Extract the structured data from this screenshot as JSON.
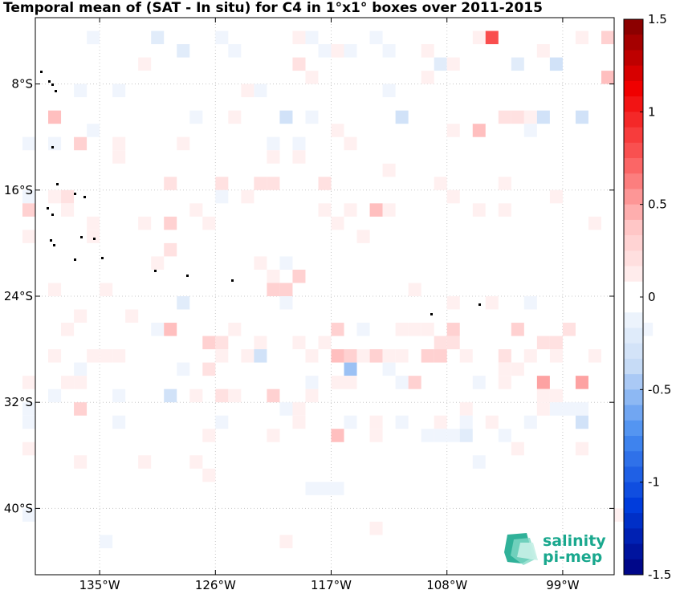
{
  "chart_data": {
    "type": "heatmap",
    "title": "Temporal mean of (SAT - In situ) for C4 in 1°x1° boxes over 2011-2015",
    "x_axis": {
      "unit": "degrees longitude",
      "range": [
        -140,
        -95
      ],
      "ticks": [
        -135,
        -126,
        -117,
        -108,
        -99
      ],
      "tick_labels": [
        "135°W",
        "126°W",
        "117°W",
        "108°W",
        "99°W"
      ]
    },
    "y_axis": {
      "unit": "degrees latitude",
      "range": [
        -45,
        -3
      ],
      "ticks": [
        -8,
        -16,
        -24,
        -32,
        -40
      ],
      "tick_labels": [
        "8°S",
        "16°S",
        "24°S",
        "32°S",
        "40°S"
      ]
    },
    "grid": true,
    "colorbar": {
      "range": [
        -1.5,
        1.5
      ],
      "ticks": [
        1.5,
        1,
        0.5,
        0,
        -0.5,
        -1,
        -1.5
      ],
      "tick_labels": [
        "1.5",
        "1",
        "0.5",
        "0",
        "-0.5",
        "-1",
        "-1.5"
      ],
      "low_color": "#00007f",
      "mid_color": "#ffffff",
      "high_color": "#7f0000"
    },
    "cells_note": "lon/lat of 1°x1° box west edge and north edge; value = mean difference",
    "cells": [
      [
        -136,
        -4,
        -0.1
      ],
      [
        -131,
        -4,
        -0.2
      ],
      [
        -126,
        -4,
        -0.1
      ],
      [
        -120,
        -4,
        0.1
      ],
      [
        -119,
        -4,
        -0.1
      ],
      [
        -114,
        -4,
        -0.1
      ],
      [
        -106,
        -4,
        0.1
      ],
      [
        -105,
        -4,
        0.8
      ],
      [
        -98,
        -4,
        0.1
      ],
      [
        -96,
        -4,
        0.3
      ],
      [
        -129,
        -5,
        -0.2
      ],
      [
        -117,
        -5,
        0.1
      ],
      [
        -116,
        -5,
        -0.1
      ],
      [
        -113,
        -5,
        -0.1
      ],
      [
        -110,
        -5,
        0.1
      ],
      [
        -101,
        -5,
        0.1
      ],
      [
        -118,
        -5,
        -0.1
      ],
      [
        -125,
        -5,
        -0.1
      ],
      [
        -132,
        -6,
        0.1
      ],
      [
        -120,
        -6,
        0.2
      ],
      [
        -109,
        -6,
        -0.2
      ],
      [
        -103,
        -6,
        -0.2
      ],
      [
        -100,
        -6,
        -0.3
      ],
      [
        -108,
        -6,
        0.1
      ],
      [
        -96,
        -7,
        0.4
      ],
      [
        -119,
        -7,
        0.1
      ],
      [
        -110,
        -7,
        0.1
      ],
      [
        -137,
        -8,
        -0.1
      ],
      [
        -134,
        -8,
        -0.1
      ],
      [
        -123,
        -8,
        -0.1
      ],
      [
        -124,
        -8,
        0.1
      ],
      [
        -113,
        -8,
        -0.1
      ],
      [
        -139,
        -10,
        0.4
      ],
      [
        -128,
        -10,
        -0.1
      ],
      [
        -125,
        -10,
        0.1
      ],
      [
        -121,
        -10,
        -0.3
      ],
      [
        -119,
        -10,
        -0.1
      ],
      [
        -112,
        -10,
        -0.3
      ],
      [
        -104,
        -10,
        0.2
      ],
      [
        -103,
        -10,
        0.2
      ],
      [
        -102,
        -10,
        0.1
      ],
      [
        -101,
        -10,
        -0.3
      ],
      [
        -98,
        -10,
        -0.3
      ],
      [
        -136,
        -11,
        -0.1
      ],
      [
        -117,
        -11,
        0.1
      ],
      [
        -108,
        -11,
        0.1
      ],
      [
        -106,
        -11,
        0.4
      ],
      [
        -102,
        -11,
        -0.1
      ],
      [
        -141,
        -12,
        -0.1
      ],
      [
        -139,
        -12,
        -0.1
      ],
      [
        -137,
        -12,
        0.3
      ],
      [
        -134,
        -12,
        0.1
      ],
      [
        -129,
        -12,
        0.1
      ],
      [
        -122,
        -12,
        -0.1
      ],
      [
        -120,
        -12,
        -0.1
      ],
      [
        -116,
        -12,
        0.1
      ],
      [
        -134,
        -13,
        0.1
      ],
      [
        -122,
        -13,
        0.1
      ],
      [
        -120,
        -13,
        0.1
      ],
      [
        -113,
        -14,
        0.1
      ],
      [
        -130,
        -15,
        0.2
      ],
      [
        -126,
        -15,
        0.2
      ],
      [
        -123,
        -15,
        0.2
      ],
      [
        -122,
        -15,
        0.2
      ],
      [
        -118,
        -15,
        0.2
      ],
      [
        -109,
        -15,
        0.1
      ],
      [
        -104,
        -15,
        0.1
      ],
      [
        -141,
        -16,
        -0.1
      ],
      [
        -139,
        -16,
        0.1
      ],
      [
        -138,
        -16,
        0.2
      ],
      [
        -126,
        -16,
        -0.1
      ],
      [
        -124,
        -16,
        0.1
      ],
      [
        -108,
        -16,
        0.1
      ],
      [
        -100,
        -16,
        0.1
      ],
      [
        -141,
        -17,
        0.3
      ],
      [
        -138,
        -17,
        0.1
      ],
      [
        -128,
        -17,
        0.1
      ],
      [
        -118,
        -17,
        0.1
      ],
      [
        -116,
        -17,
        0.1
      ],
      [
        -114,
        -17,
        0.4
      ],
      [
        -113,
        -17,
        0.1
      ],
      [
        -106,
        -17,
        0.1
      ],
      [
        -104,
        -17,
        0.1
      ],
      [
        -136,
        -18,
        0.1
      ],
      [
        -132,
        -18,
        0.1
      ],
      [
        -130,
        -18,
        0.3
      ],
      [
        -127,
        -18,
        0.1
      ],
      [
        -117,
        -18,
        0.1
      ],
      [
        -97,
        -18,
        0.1
      ],
      [
        -141,
        -19,
        0.1
      ],
      [
        -136,
        -19,
        0.1
      ],
      [
        -115,
        -19,
        0.1
      ],
      [
        -130,
        -20,
        0.2
      ],
      [
        -131,
        -21,
        0.1
      ],
      [
        -123,
        -21,
        0.1
      ],
      [
        -121,
        -21,
        -0.1
      ],
      [
        -120,
        -22,
        0.3
      ],
      [
        -139,
        -23,
        0.1
      ],
      [
        -121,
        -23,
        0.3
      ],
      [
        -122,
        -23,
        0.3
      ],
      [
        -135,
        -23,
        0.1
      ],
      [
        -121,
        -24,
        -0.1
      ],
      [
        -108,
        -24,
        0.1
      ],
      [
        -105,
        -24,
        0.1
      ],
      [
        -102,
        -24,
        -0.1
      ],
      [
        -122,
        -22,
        0.1
      ],
      [
        -111,
        -23,
        0.1
      ],
      [
        -129,
        -24,
        -0.2
      ],
      [
        -137,
        -25,
        0.1
      ],
      [
        -133,
        -25,
        0.1
      ],
      [
        -138,
        -26,
        0.1
      ],
      [
        -131,
        -26,
        -0.1
      ],
      [
        -130,
        -26,
        0.4
      ],
      [
        -125,
        -26,
        0.1
      ],
      [
        -117,
        -26,
        0.3
      ],
      [
        -115,
        -26,
        -0.1
      ],
      [
        -112,
        -26,
        0.1
      ],
      [
        -111,
        -26,
        0.1
      ],
      [
        -110,
        -26,
        0.1
      ],
      [
        -108,
        -26,
        0.3
      ],
      [
        -103,
        -26,
        0.3
      ],
      [
        -99,
        -26,
        0.2
      ],
      [
        -93,
        -26,
        -0.1
      ],
      [
        -127,
        -27,
        0.3
      ],
      [
        -126,
        -27,
        0.2
      ],
      [
        -123,
        -27,
        0.1
      ],
      [
        -120,
        -27,
        0.1
      ],
      [
        -118,
        -27,
        0.1
      ],
      [
        -109,
        -27,
        0.2
      ],
      [
        -108,
        -27,
        0.2
      ],
      [
        -101,
        -27,
        0.2
      ],
      [
        -100,
        -27,
        0.2
      ],
      [
        -139,
        -28,
        0.1
      ],
      [
        -136,
        -28,
        0.1
      ],
      [
        -135,
        -28,
        0.1
      ],
      [
        -134,
        -28,
        0.1
      ],
      [
        -126,
        -28,
        0.1
      ],
      [
        -124,
        -28,
        0.1
      ],
      [
        -123,
        -28,
        -0.3
      ],
      [
        -119,
        -28,
        0.1
      ],
      [
        -117,
        -28,
        0.4
      ],
      [
        -116,
        -28,
        0.3
      ],
      [
        -115,
        -28,
        0.1
      ],
      [
        -114,
        -28,
        0.3
      ],
      [
        -113,
        -28,
        0.1
      ],
      [
        -112,
        -28,
        0.1
      ],
      [
        -110,
        -28,
        0.3
      ],
      [
        -109,
        -28,
        0.3
      ],
      [
        -107,
        -28,
        0.1
      ],
      [
        -104,
        -28,
        0.2
      ],
      [
        -102,
        -28,
        0.1
      ],
      [
        -100,
        -28,
        0.1
      ],
      [
        -97,
        -28,
        0.1
      ],
      [
        -137,
        -29,
        -0.1
      ],
      [
        -129,
        -29,
        -0.1
      ],
      [
        -127,
        -29,
        0.2
      ],
      [
        -116,
        -29,
        -0.5
      ],
      [
        -113,
        -29,
        -0.1
      ],
      [
        -104,
        -29,
        0.1
      ],
      [
        -103,
        -29,
        0.1
      ],
      [
        -141,
        -30,
        0.1
      ],
      [
        -138,
        -30,
        0.1
      ],
      [
        -137,
        -30,
        0.1
      ],
      [
        -119,
        -30,
        -0.1
      ],
      [
        -117,
        -30,
        0.1
      ],
      [
        -116,
        -30,
        0.1
      ],
      [
        -112,
        -30,
        -0.1
      ],
      [
        -111,
        -30,
        0.3
      ],
      [
        -106,
        -30,
        -0.1
      ],
      [
        -104,
        -30,
        0.1
      ],
      [
        -101,
        -30,
        0.5
      ],
      [
        -98,
        -30,
        0.5
      ],
      [
        -139,
        -31,
        -0.1
      ],
      [
        -134,
        -31,
        -0.1
      ],
      [
        -130,
        -31,
        -0.3
      ],
      [
        -128,
        -31,
        0.1
      ],
      [
        -126,
        -31,
        0.2
      ],
      [
        -125,
        -31,
        0.1
      ],
      [
        -122,
        -31,
        0.3
      ],
      [
        -119,
        -31,
        0.1
      ],
      [
        -101,
        -31,
        0.1
      ],
      [
        -100,
        -31,
        0.1
      ],
      [
        -141,
        -32,
        -0.1
      ],
      [
        -137,
        -32,
        0.3
      ],
      [
        -121,
        -32,
        -0.1
      ],
      [
        -120,
        -32,
        0.1
      ],
      [
        -107,
        -32,
        0.1
      ],
      [
        -101,
        -32,
        0.1
      ],
      [
        -100,
        -32,
        -0.1
      ],
      [
        -99,
        -32,
        -0.1
      ],
      [
        -98,
        -32,
        -0.1
      ],
      [
        -141,
        -33,
        -0.1
      ],
      [
        -134,
        -33,
        -0.1
      ],
      [
        -126,
        -33,
        -0.1
      ],
      [
        -120,
        -33,
        0.1
      ],
      [
        -116,
        -33,
        -0.1
      ],
      [
        -114,
        -33,
        0.1
      ],
      [
        -112,
        -33,
        -0.1
      ],
      [
        -109,
        -33,
        0.1
      ],
      [
        -107,
        -33,
        -0.1
      ],
      [
        -105,
        -33,
        0.1
      ],
      [
        -102,
        -33,
        -0.1
      ],
      [
        -98,
        -33,
        -0.3
      ],
      [
        -127,
        -34,
        0.1
      ],
      [
        -122,
        -34,
        0.1
      ],
      [
        -117,
        -34,
        0.4
      ],
      [
        -114,
        -34,
        0.1
      ],
      [
        -110,
        -34,
        -0.1
      ],
      [
        -109,
        -34,
        -0.1
      ],
      [
        -108,
        -34,
        -0.1
      ],
      [
        -107,
        -34,
        -0.2
      ],
      [
        -104,
        -34,
        -0.1
      ],
      [
        -141,
        -35,
        0.1
      ],
      [
        -103,
        -35,
        0.1
      ],
      [
        -98,
        -35,
        0.1
      ],
      [
        -137,
        -36,
        0.1
      ],
      [
        -132,
        -36,
        0.1
      ],
      [
        -128,
        -36,
        0.1
      ],
      [
        -106,
        -36,
        -0.1
      ],
      [
        -127,
        -37,
        0.1
      ],
      [
        -117,
        -38,
        -0.1
      ],
      [
        -118,
        -38,
        -0.1
      ],
      [
        -119,
        -38,
        -0.1
      ],
      [
        -141,
        -40,
        -0.1
      ],
      [
        -95,
        -40,
        0.1
      ],
      [
        -114,
        -41,
        0.1
      ],
      [
        -135,
        -42,
        -0.1
      ],
      [
        -121,
        -42,
        0.1
      ]
    ]
  },
  "logo": {
    "line1": "salinity",
    "line2": "pi-mep"
  }
}
